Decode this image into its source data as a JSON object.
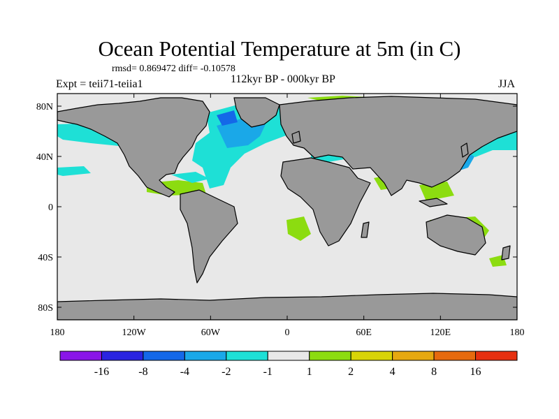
{
  "title": "Ocean Potential Temperature at 5m (in C)",
  "stats": "rmsd= 0.869472 diff= -0.10578",
  "left_label": "Expt = teii71-teiia1",
  "center_label": "112kyr BP - 000kyr BP",
  "right_label": "JJA",
  "map": {
    "projection": "cylindrical equidistant",
    "lon_range": [
      -180,
      180
    ],
    "lat_range": [
      -90,
      90
    ],
    "x_ticks": [
      "180",
      "120W",
      "60W",
      "0",
      "60E",
      "120E",
      "180"
    ],
    "y_ticks": [
      "80N",
      "40N",
      "0",
      "40S",
      "80S"
    ],
    "land_color": "#999999",
    "ocean_color": "#e8e8e8"
  },
  "colorbar": {
    "colors": [
      "#8a16e8",
      "#2a24e0",
      "#1468e8",
      "#1aa8e8",
      "#1ee0d6",
      "#e8e8e8",
      "#8cdc10",
      "#d8d408",
      "#e6a810",
      "#e66a0e",
      "#e63010"
    ],
    "labels": [
      "-16",
      "-8",
      "-4",
      "-2",
      "-1",
      "1",
      "2",
      "4",
      "8",
      "16"
    ]
  }
}
